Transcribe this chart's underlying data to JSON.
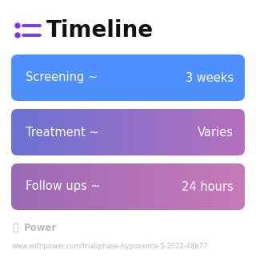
{
  "title": "Timeline",
  "background_color": "#ffffff",
  "rows": [
    {
      "label": "Screening ~",
      "value": "3 weeks",
      "color_left": "#4d8fff",
      "color_right": "#4d8fff"
    },
    {
      "label": "Treatment ~",
      "value": "Varies",
      "color_left": "#6b72d4",
      "color_right": "#b06ab5"
    },
    {
      "label": "Follow ups ~",
      "value": "24 hours",
      "color_left": "#9b6db5",
      "color_right": "#c878b8"
    }
  ],
  "footer_logo_text": "Power",
  "footer_url": "www.withpower.com/trial/phase-hypoxemia-5-2022-48b77",
  "icon_color": "#7c3aed",
  "title_fontsize": 20,
  "label_fontsize": 10.5,
  "value_fontsize": 10.5,
  "footer_fontsize": 6.0,
  "logo_fontsize": 8.5,
  "box_gradients": [
    [
      "#4d8fff",
      "#4d8fff"
    ],
    [
      "#6b72d4",
      "#b570bc"
    ],
    [
      "#9b6ab5",
      "#c87ab8"
    ]
  ]
}
